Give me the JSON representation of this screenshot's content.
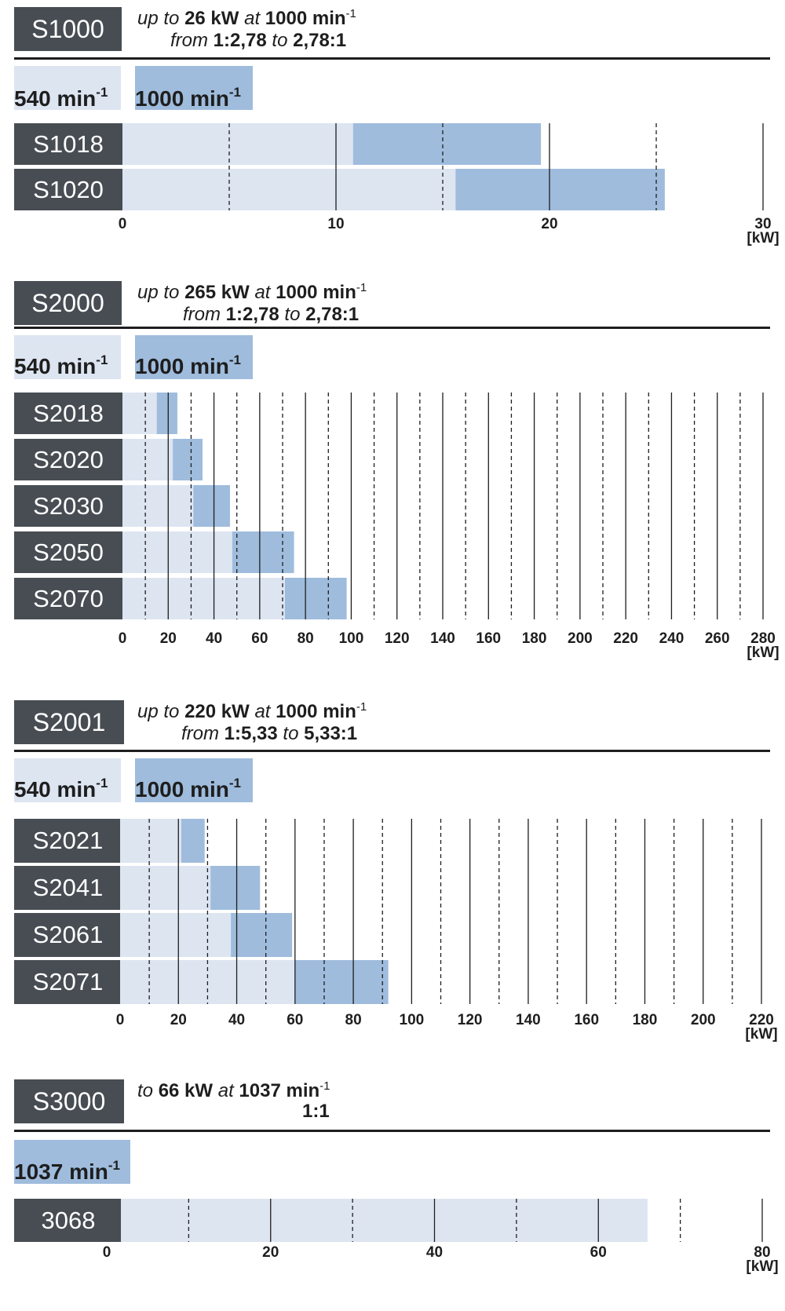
{
  "colors": {
    "light_bar": "#dde5f1",
    "dark_bar": "#9fbcdd",
    "label_bg": "#474d53",
    "text": "#1e1e1e"
  },
  "sections": [
    {
      "title": "S1000",
      "spec": {
        "up_to": "up to",
        "power": "26 kW",
        "at": "at",
        "speed": "1000 min",
        "speed_exp": "-1",
        "from": "from",
        "ratio_min": "1:2,78",
        "to": "to",
        "ratio_max": "2,78:1"
      },
      "legend": [
        {
          "label": "540 min",
          "exp": "-1",
          "color": "light"
        },
        {
          "label": "1000 min",
          "exp": "-1",
          "color": "dark"
        }
      ],
      "unit": "[kW]"
    },
    {
      "title": "S2000",
      "spec": {
        "up_to": "up to",
        "power": "265 kW",
        "at": "at",
        "speed": "1000 min",
        "speed_exp": "-1",
        "from": "from",
        "ratio_min": "1:2,78",
        "to": "to",
        "ratio_max": "2,78:1"
      },
      "legend": [
        {
          "label": "540 min",
          "exp": "-1",
          "color": "light"
        },
        {
          "label": "1000 min",
          "exp": "-1",
          "color": "dark"
        }
      ],
      "unit": "[kW]"
    },
    {
      "title": "S2001",
      "spec": {
        "up_to": "up to",
        "power": "220 kW",
        "at": "at",
        "speed": "1000 min",
        "speed_exp": "-1",
        "from": "from",
        "ratio_min": "1:5,33",
        "to": "to",
        "ratio_max": "5,33:1"
      },
      "legend": [
        {
          "label": "540 min",
          "exp": "-1",
          "color": "light"
        },
        {
          "label": "1000 min",
          "exp": "-1",
          "color": "dark"
        }
      ],
      "unit": "[kW]"
    },
    {
      "title": "S3000",
      "spec": {
        "up_to": "to",
        "power": "66 kW",
        "at": "at",
        "speed": "1037 min",
        "speed_exp": "-1",
        "ratio": "1:1"
      },
      "legend": [
        {
          "label": "1037 min",
          "exp": "-1",
          "color": "dark"
        }
      ],
      "unit": "[kW]"
    }
  ],
  "chart_data": [
    {
      "type": "bar",
      "orientation": "horizontal",
      "title": "S1000",
      "categories": [
        "S1018",
        "S1020"
      ],
      "series": [
        {
          "name": "540 min-1",
          "values": [
            10.8,
            15.6
          ]
        },
        {
          "name": "1000 min-1",
          "values": [
            19.6,
            25.4
          ]
        }
      ],
      "xlim": [
        0,
        30
      ],
      "xticks": [
        0,
        10,
        20,
        30
      ],
      "xlabel": "[kW]",
      "minor_gridlines": "dashed every 5"
    },
    {
      "type": "bar",
      "orientation": "horizontal",
      "title": "S2000",
      "categories": [
        "S2018",
        "S2020",
        "S2030",
        "S2050",
        "S2070"
      ],
      "series": [
        {
          "name": "540 min-1",
          "values": [
            15,
            22,
            31,
            48,
            71
          ]
        },
        {
          "name": "1000 min-1",
          "values": [
            24,
            35,
            47,
            75,
            98
          ]
        }
      ],
      "xlim": [
        0,
        280
      ],
      "xticks": [
        0,
        20,
        40,
        60,
        80,
        100,
        120,
        140,
        160,
        180,
        200,
        220,
        240,
        260,
        280
      ],
      "xlabel": "[kW]",
      "minor_gridlines": "dashed every 10"
    },
    {
      "type": "bar",
      "orientation": "horizontal",
      "title": "S2001",
      "categories": [
        "S2021",
        "S2041",
        "S2061",
        "S2071"
      ],
      "series": [
        {
          "name": "540 min-1",
          "values": [
            21,
            31,
            38,
            60
          ]
        },
        {
          "name": "1000 min-1",
          "values": [
            29,
            48,
            59,
            92
          ]
        }
      ],
      "xlim": [
        0,
        220
      ],
      "xticks": [
        0,
        20,
        40,
        60,
        80,
        100,
        120,
        140,
        160,
        180,
        200,
        220
      ],
      "xlabel": "[kW]",
      "minor_gridlines": "dashed every 10"
    },
    {
      "type": "bar",
      "orientation": "horizontal",
      "title": "S3000",
      "categories": [
        "3068"
      ],
      "series": [
        {
          "name": "1037 min-1",
          "values": [
            66
          ]
        }
      ],
      "xlim": [
        0,
        80
      ],
      "xticks": [
        0,
        20,
        40,
        60,
        80
      ],
      "xlabel": "[kW]",
      "minor_gridlines": "dashed every 10"
    }
  ]
}
